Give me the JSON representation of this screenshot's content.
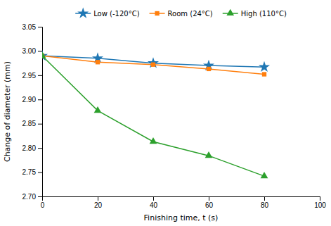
{
  "chart_data": {
    "type": "line",
    "x_label": "Finishing time, t (s)",
    "y_label": "Change of diameter (mm)",
    "x": [
      0,
      20,
      40,
      60,
      80
    ],
    "series": [
      {
        "name": "Low (-120°C)",
        "marker": "star",
        "values": [
          2.99,
          2.985,
          2.975,
          2.97,
          2.967
        ]
      },
      {
        "name": "Room (24°C)",
        "marker": "square",
        "values": [
          2.99,
          2.977,
          2.972,
          2.963,
          2.952
        ]
      },
      {
        "name": "High (110°C)",
        "marker": "triangle",
        "values": [
          2.99,
          2.877,
          2.813,
          2.784,
          2.742
        ]
      }
    ],
    "xlim": [
      0,
      100
    ],
    "ylim": [
      2.7,
      3.05
    ],
    "xticks": [
      0,
      20,
      40,
      60,
      80,
      100
    ],
    "yticks": [
      {
        "value": 2.7,
        "label": "2.70"
      },
      2.75,
      {
        "value": 2.8,
        "label": "2.80"
      },
      2.85,
      {
        "value": 2.9,
        "label": "2.90"
      },
      2.95,
      {
        "value": 3.0,
        "label": "3.00"
      },
      3.05
    ],
    "grid": false,
    "legend": "top"
  }
}
